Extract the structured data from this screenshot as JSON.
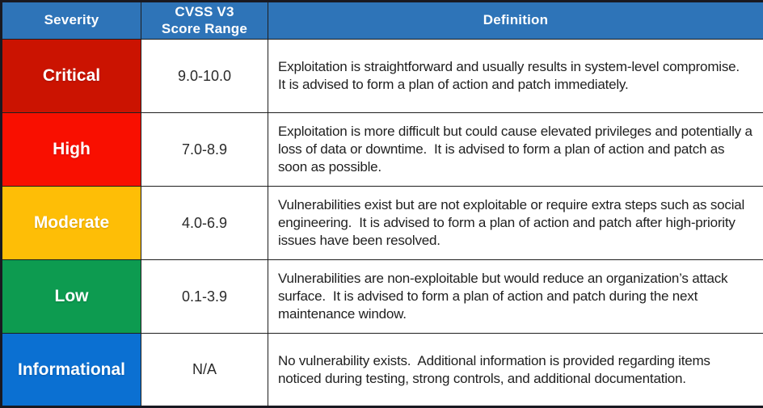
{
  "table": {
    "header_bg": "#2E74B8",
    "columns": [
      {
        "label": "Severity"
      },
      {
        "label": "CVSS V3\nScore Range"
      },
      {
        "label": "Definition"
      }
    ],
    "rows": [
      {
        "severity": "Critical",
        "color": "#CB1301",
        "score": "9.0-10.0",
        "definition": "Exploitation is straightforward and usually results in system-level compromise.  It is advised to form a plan of action and patch immediately."
      },
      {
        "severity": "High",
        "color": "#F90F00",
        "score": "7.0-8.9",
        "definition": "Exploitation is more difficult but could cause elevated privileges and potentially a loss of data or downtime.  It is advised to form a plan of action and patch as soon as possible."
      },
      {
        "severity": "Moderate",
        "color": "#FEBE06",
        "score": "4.0-6.9",
        "definition": "Vulnerabilities exist but are not exploitable or require extra steps such as social engineering.  It is advised to form a plan of action and patch after high-priority issues have been resolved."
      },
      {
        "severity": "Low",
        "color": "#0D9B50",
        "score": "0.1-3.9",
        "definition": "Vulnerabilities are non-exploitable but would reduce an organization’s attack surface.  It is advised to form a plan of action and patch during the next maintenance window."
      },
      {
        "severity": "Informational",
        "color": "#0B70D2",
        "score": "N/A",
        "definition": "No vulnerability exists.  Additional information is provided regarding items noticed during testing, strong controls, and additional documentation."
      }
    ]
  }
}
